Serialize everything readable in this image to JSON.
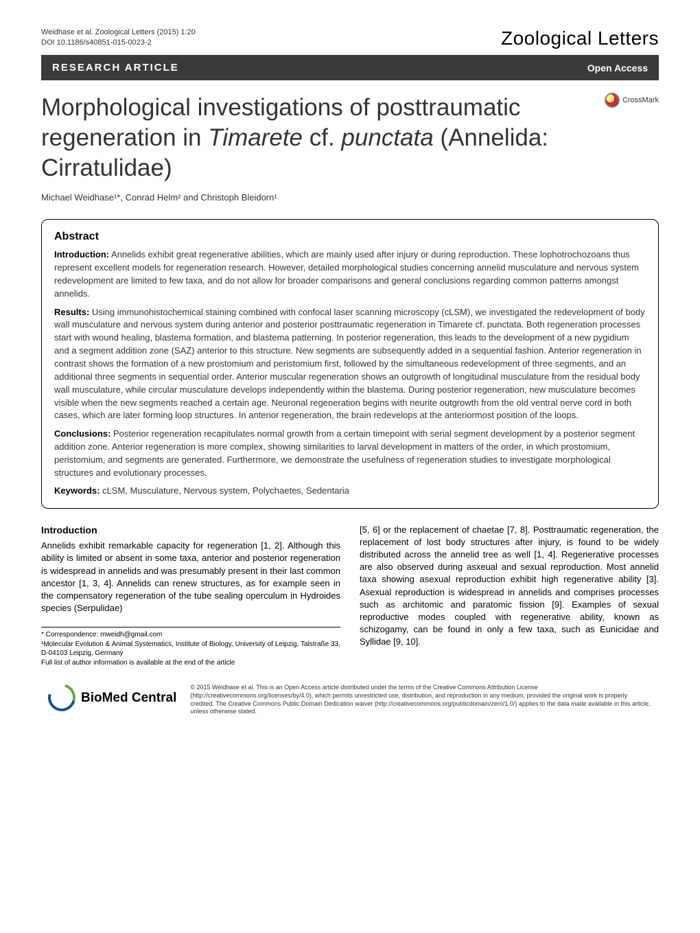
{
  "header": {
    "citation_line1": "Weidhase et al. Zoological Letters  (2015) 1:20",
    "citation_line2": "DOI 10.1186/s40851-015-0023-2",
    "journal": "Zoological Letters"
  },
  "bar": {
    "type": "RESEARCH ARTICLE",
    "access": "Open Access"
  },
  "crossmark_label": "CrossMark",
  "title": {
    "part1": "Morphological investigations of posttraumatic regeneration in ",
    "italic1": "Timarete",
    "part2": " cf. ",
    "italic2": "punctata",
    "part3": " (Annelida: Cirratulidae)"
  },
  "authors": "Michael Weidhase¹*, Conrad Helm² and Christoph Bleidorn¹",
  "abstract": {
    "heading": "Abstract",
    "intro_label": "Introduction:",
    "intro_text": " Annelids exhibit great regenerative abilities, which are mainly used after injury or during reproduction. These lophotrochozoans thus represent excellent models for regeneration research. However, detailed morphological studies concerning annelid musculature and nervous system redevelopment are limited to few taxa, and do not allow for broader comparisons and general conclusions regarding common patterns amongst annelids.",
    "results_label": "Results:",
    "results_text": " Using immunohistochemical staining combined with confocal laser scanning microscopy (cLSM), we investigated the redevelopment of body wall musculature and nervous system during anterior and posterior posttraumatic regeneration in Timarete cf. punctata. Both regeneration processes start with wound healing, blastema formation, and blastema patterning. In posterior regeneration, this leads to the development of a new pygidium and a segment addition zone (SAZ) anterior to this structure. New segments are subsequently added in a sequential fashion. Anterior regeneration in contrast shows the formation of a new prostomium and peristomium first, followed by the simultaneous redevelopment of three segments, and an additional three segments in sequential order. Anterior muscular regeneration shows an outgrowth of longitudinal musculature from the residual body wall musculature, while circular musculature develops independently within the blastema. During posterior regeneration, new musculature becomes visible when the new segments reached a certain age. Neuronal regeneration begins with neurite outgrowth from the old ventral nerve cord in both cases, which are later forming loop structures. In anterior regeneration, the brain redevelops at the anteriormost position of the loops.",
    "conclusions_label": "Conclusions:",
    "conclusions_text": " Posterior regeneration recapitulates normal growth from a certain timepoint with serial segment development by a posterior segment addition zone. Anterior regeneration is more complex, showing similarities to larval development in matters of the order, in which prostomium, peristomium, and segments are generated. Furthermore, we demonstrate the usefulness of regeneration studies to investigate morphological structures and evolutionary processes.",
    "keywords_label": "Keywords:",
    "keywords_text": " cLSM, Musculature, Nervous system, Polychaetes, Sedentaria"
  },
  "body": {
    "intro_heading": "Introduction",
    "left_col": "Annelids exhibit remarkable capacity for regeneration [1, 2]. Although this ability is limited or absent in some taxa, anterior and posterior regeneration is widespread in annelids and was presumably present in their last common ancestor [1, 3, 4]. Annelids can renew structures, as for example seen in the compensatory regeneration of the tube sealing operculum in Hydroides species (Serpulidae)",
    "right_col": "[5, 6] or the replacement of chaetae [7, 8]. Posttraumatic regeneration, the replacement of lost body structures after injury, is found to be widely distributed across the annelid tree as well [1, 4]. Regenerative processes are also observed during asxeual and sexual reproduction. Most annelid taxa showing asexual reproduction exhibit high regenerative ability [3]. Asexual reproduction is widespread in annelids and comprises processes such as architomic and paratomic fission [9]. Examples of sexual reproductive modes coupled with regenerative ability, known as schizogamy, can be found in only a few taxa, such as Eunicidae and Syllidae [9, 10]."
  },
  "footnotes": {
    "correspondence": "* Correspondence: mweidh@gmail.com",
    "affil1": "¹Molecular Evolution & Animal Systematics, Institute of Biology, University of Leipzig, Talstraße 33, D-04103 Leipzig, Germany",
    "full_list": "Full list of author information is available at the end of the article"
  },
  "footer": {
    "logo_text": "BioMed Central",
    "license": "© 2015 Weidhase et al. This is an Open Access article distributed under the terms of the Creative Commons Attribution License (http://creativecommons.org/licenses/by/4.0), which permits unrestricted use, distribution, and reproduction in any medium, provided the original work is properly credited. The Creative Commons Public Domain Dedication waiver (http://creativecommons.org/publicdomain/zero/1.0/) applies to the data made available in this article, unless otherwise stated."
  },
  "colors": {
    "bar_bg": "#3b3b3b",
    "text": "#333333",
    "border": "#000000"
  }
}
